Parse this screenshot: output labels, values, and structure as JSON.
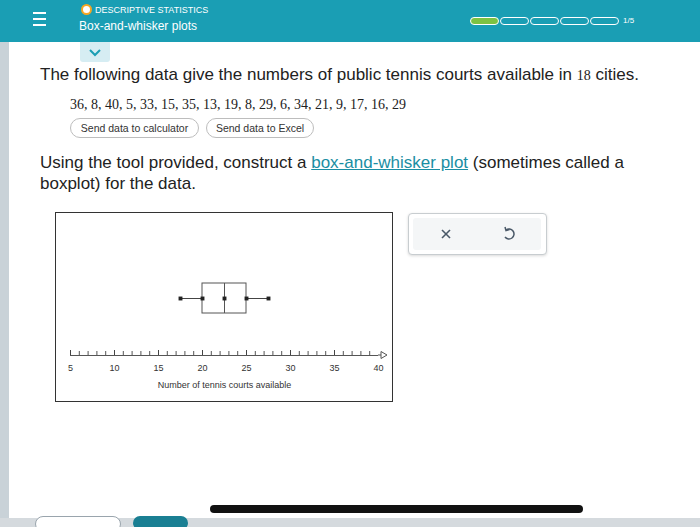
{
  "header": {
    "category": "DESCRIPTIVE STATISTICS",
    "title": "Box-and-whisker plots",
    "progress": {
      "done": 1,
      "total": 5,
      "label": "1/5"
    }
  },
  "question": {
    "text_before": "The following data give the numbers of public tennis courts available in ",
    "count": 18,
    "text_after": " cities.",
    "data": "36, 8, 40, 5, 33, 15, 35, 13, 19, 8, 29, 6, 34, 21, 9, 17, 16, 29",
    "buttons": [
      "Send data to calculator",
      "Send data to Excel"
    ]
  },
  "instruction": {
    "before": "Using the tool provided, construct a ",
    "link": "box-and-whisker plot",
    "after": " (sometimes called a boxplot) for the data."
  },
  "chart_data": {
    "type": "boxplot",
    "xlabel": "Number of tennis courts available",
    "xlim": [
      5,
      40
    ],
    "xticks": [
      5,
      10,
      15,
      20,
      25,
      30,
      35,
      40
    ],
    "minor_xticks": [
      5,
      6,
      7,
      8,
      9,
      10,
      11,
      12,
      13,
      14,
      15,
      16,
      17,
      18,
      19,
      20,
      21,
      22,
      23,
      24,
      25,
      26,
      27,
      28,
      29,
      30,
      31,
      32,
      33,
      34,
      35,
      36,
      37,
      38,
      39,
      40
    ],
    "box": {
      "whisker_low": 17.5,
      "q1": 20,
      "median": 22.5,
      "q3": 25,
      "whisker_high": 27.5
    }
  }
}
